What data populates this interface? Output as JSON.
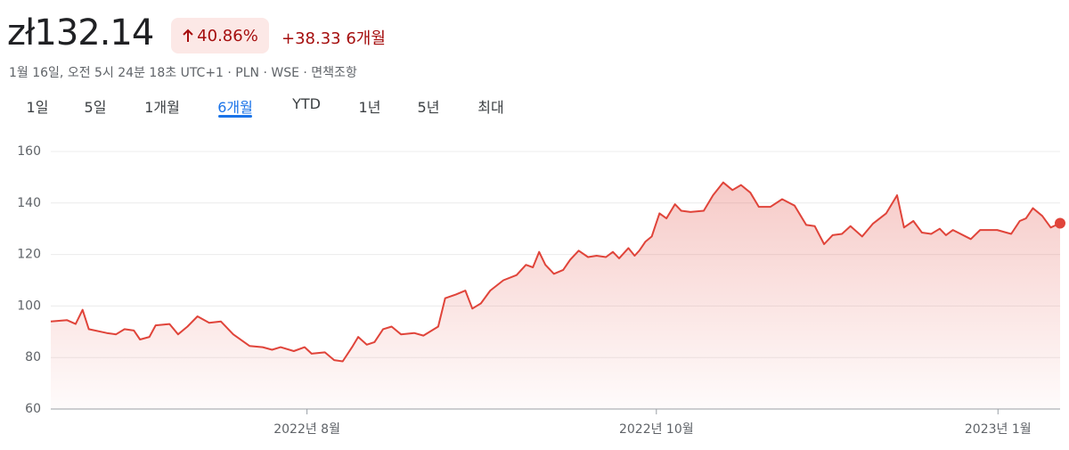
{
  "header": {
    "price": "zł132.14",
    "change_pct": "40.86%",
    "change_abs": "+38.33",
    "period": "6개월",
    "subtitle": "1월 16일, 오전 5시 24분 18초 UTC+1 · PLN · WSE · 면책조항"
  },
  "tabs": [
    "1일",
    "5일",
    "1개월",
    "6개월",
    "YTD",
    "1년",
    "5년",
    "최대"
  ],
  "selected_tab": 3,
  "chart_data": {
    "type": "line",
    "x": [
      0,
      2.1,
      3.2,
      4.1,
      4.9,
      7.2,
      8.4,
      9.5,
      10.7,
      11.5,
      12.7,
      13.5,
      15.3,
      16.4,
      17.6,
      18.9,
      20.4,
      21.9,
      23.5,
      25.6,
      27.3,
      28.5,
      29.6,
      31.3,
      32.7,
      33.6,
      35.3,
      36.5,
      37.6,
      38.8,
      39.6,
      40.7,
      41.7,
      42.8,
      43.9,
      45.1,
      46.8,
      48.0,
      49.9,
      50.8,
      52.2,
      53.4,
      54.3,
      55.4,
      56.6,
      58.3,
      60.0,
      61.2,
      62.1,
      62.9,
      63.7,
      64.8,
      66.0,
      66.9,
      68.0,
      69.2,
      70.3,
      71.5,
      72.4,
      73.2,
      74.4,
      75.2,
      75.8,
      76.6,
      77.4,
      78.4,
      79.3,
      80.4,
      81.2,
      82.4,
      84.1,
      85.3,
      86.6,
      87.8,
      88.9,
      90.1,
      91.2,
      92.7,
      94.2,
      95.8,
      97.3,
      98.4,
      99.6,
      100.7,
      101.9,
      103.0,
      104.5,
      105.9,
      107.6,
      109.0,
      109.9,
      111.1,
      112.2,
      113.4,
      114.5,
      115.3,
      116.2,
      118.5,
      119.7,
      121.9,
      123.7,
      124.8,
      125.6,
      126.5,
      127.7,
      128.8,
      130
    ],
    "series": [
      {
        "name": "WSE",
        "color": "#e0443a",
        "values": [
          94,
          94.5,
          93,
          98.5,
          91,
          89.5,
          89,
          91,
          90.5,
          87,
          88,
          92.5,
          93,
          89,
          92,
          96,
          93.5,
          94,
          89,
          84.5,
          84,
          83,
          84,
          82.5,
          84,
          81.5,
          82,
          79,
          78.5,
          84,
          88,
          85,
          86,
          91,
          92,
          89,
          89.5,
          88.5,
          92,
          103,
          104.5,
          106,
          99,
          101,
          106,
          110,
          112,
          116,
          115,
          121,
          116,
          112.5,
          114,
          118,
          121.5,
          119,
          119.5,
          119,
          121,
          118.5,
          122.5,
          119.5,
          121.5,
          125,
          127,
          136,
          134,
          139.5,
          137,
          136.5,
          137,
          143,
          148,
          145,
          147,
          144,
          138.5,
          138.5,
          141.5,
          139,
          131.5,
          131,
          124,
          127.5,
          128,
          131,
          127,
          132,
          136,
          143,
          130.5,
          133,
          128.5,
          128,
          130,
          127.5,
          129.5,
          126,
          129.5,
          129.5,
          128,
          133,
          134,
          138,
          135,
          130.5,
          132.14
        ]
      }
    ],
    "xlim": [
      0,
      130
    ],
    "xticks": [
      {
        "value": 33,
        "label": "2022년 8월"
      },
      {
        "value": 78,
        "label": "2022년 10월"
      },
      {
        "value": 122,
        "label": "2023년 1월"
      }
    ],
    "ylim": [
      60,
      160
    ],
    "yticks": [
      60,
      80,
      100,
      120,
      140,
      160
    ],
    "grid": true
  }
}
